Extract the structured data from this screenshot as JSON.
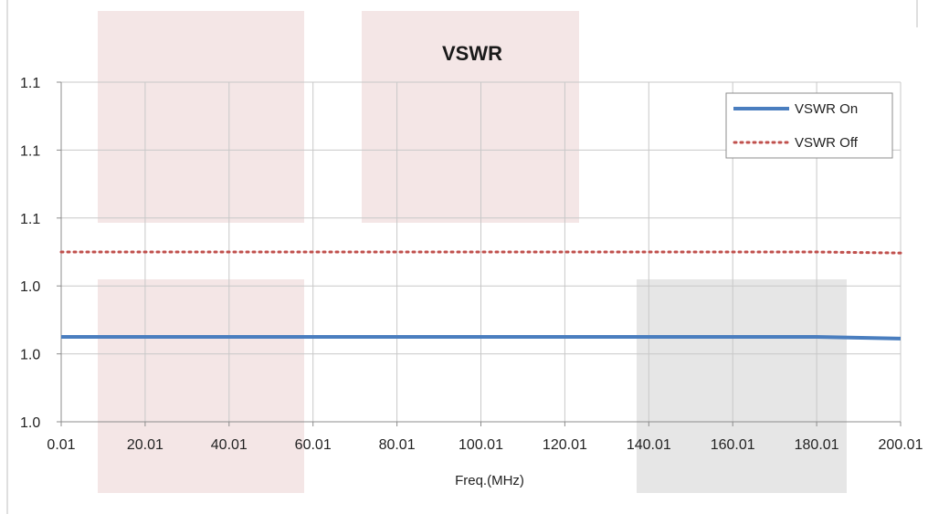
{
  "chart_data": {
    "type": "line",
    "title": "VSWR",
    "xlabel": "Freq.(MHz)",
    "ylabel": "",
    "x_tick_labels": [
      "0.01",
      "20.01",
      "40.01",
      "60.01",
      "80.01",
      "100.01",
      "120.01",
      "140.01",
      "160.01",
      "180.01",
      "200.01"
    ],
    "y_tick_labels": [
      "1.0",
      "1.0",
      "1.0",
      "1.1",
      "1.1",
      "1.1"
    ],
    "xlim": [
      0.01,
      200.01
    ],
    "ylim": [
      1.0,
      1.1
    ],
    "grid": true,
    "legend_position": "top-right",
    "x": [
      0.01,
      20.01,
      40.01,
      60.01,
      80.01,
      100.01,
      120.01,
      140.01,
      160.01,
      180.01,
      200.01
    ],
    "series": [
      {
        "name": "VSWR On",
        "style": "solid",
        "color": "#4a7ebf",
        "values": [
          1.025,
          1.025,
          1.025,
          1.025,
          1.025,
          1.025,
          1.025,
          1.025,
          1.025,
          1.025,
          1.0245
        ]
      },
      {
        "name": "VSWR Off",
        "style": "dotted",
        "color": "#c0504d",
        "values": [
          1.05,
          1.05,
          1.05,
          1.05,
          1.05,
          1.05,
          1.05,
          1.05,
          1.05,
          1.05,
          1.0497
        ]
      }
    ]
  },
  "colors": {
    "plot_border": "#8c8c8c",
    "grid": "#c8c8c8",
    "background": "#ffffff"
  }
}
